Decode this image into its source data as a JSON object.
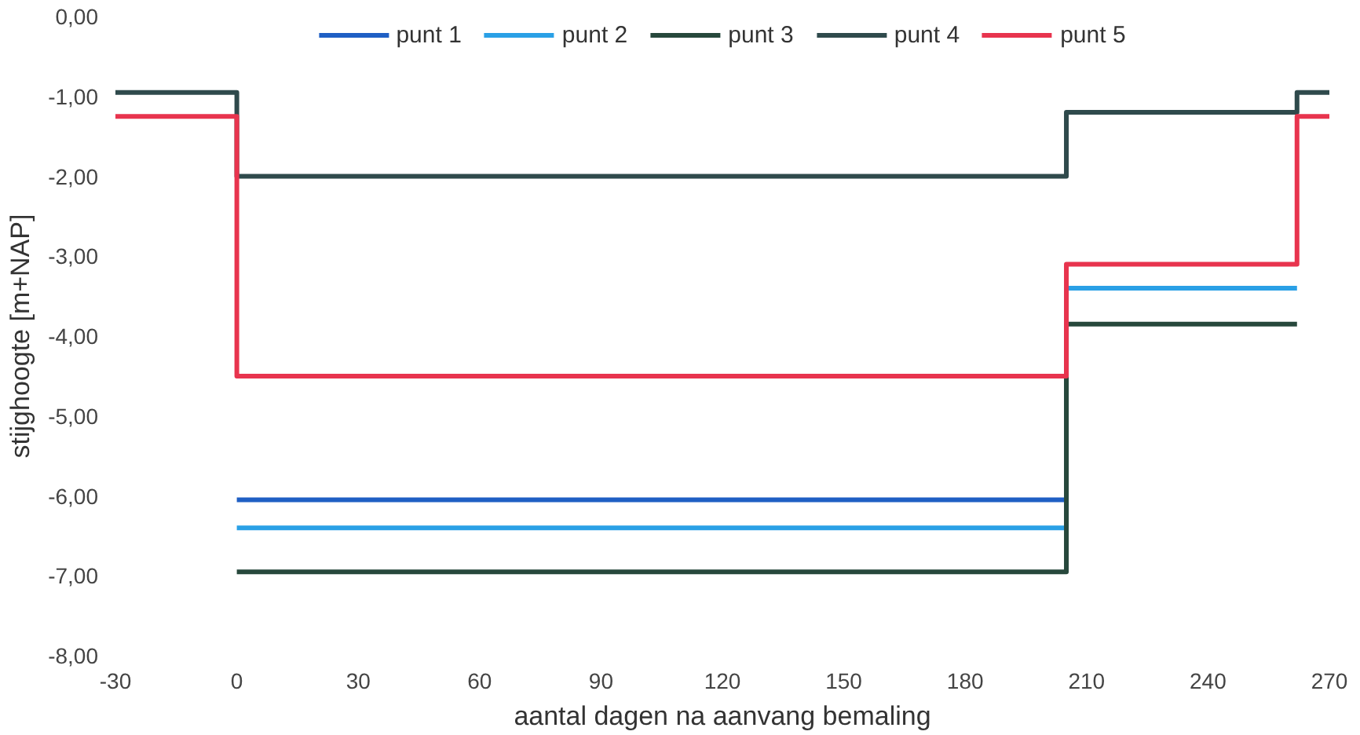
{
  "chart_data": {
    "type": "step",
    "xlabel": "aantal dagen na aanvang bemaling",
    "ylabel": "stijghoogte [m+NAP]",
    "x": [
      -30,
      0,
      205,
      262,
      270
    ],
    "series": [
      {
        "name": "punt 1",
        "color": "#1f5fc4",
        "x": [
          0,
          205
        ],
        "values": [
          -6.05,
          -6.05
        ]
      },
      {
        "name": "punt 2",
        "color": "#2aa0e6",
        "x": [
          0,
          205,
          262
        ],
        "values": [
          -6.4,
          -3.4,
          -3.4
        ]
      },
      {
        "name": "punt 3",
        "color": "#27483c",
        "x": [
          0,
          205,
          262
        ],
        "values": [
          -6.95,
          -3.85,
          -3.85
        ]
      },
      {
        "name": "punt 4",
        "color": "#2f4a4c",
        "values": [
          -0.95,
          -2.0,
          -1.2,
          -0.95,
          -0.95
        ]
      },
      {
        "name": "punt 5",
        "color": "#e8344e",
        "values": [
          -1.25,
          -4.5,
          -3.1,
          -1.25,
          -1.25
        ]
      }
    ],
    "xlim": [
      -30,
      270
    ],
    "xticks": [
      {
        "value": -30,
        "label": "-30"
      },
      0,
      30,
      60,
      90,
      120,
      150,
      180,
      210,
      240,
      270
    ],
    "ylim": [
      -8,
      0
    ],
    "yticks": [
      {
        "value": 0,
        "label": "0,00"
      },
      {
        "value": -1,
        "label": "-1,00"
      },
      {
        "value": -2,
        "label": "-2,00"
      },
      {
        "value": -3,
        "label": "-3,00"
      },
      {
        "value": -4,
        "label": "-4,00"
      },
      {
        "value": -5,
        "label": "-5,00"
      },
      {
        "value": -6,
        "label": "-6,00"
      },
      {
        "value": -7,
        "label": "-7,00"
      },
      {
        "value": -8,
        "label": "-8,00"
      }
    ],
    "grid": false,
    "legend": "top",
    "line_style": "solid"
  }
}
